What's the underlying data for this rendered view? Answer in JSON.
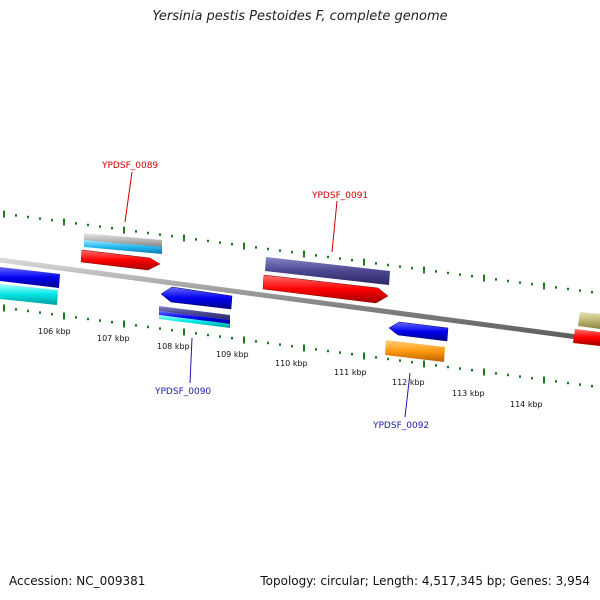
{
  "title": "Yersinia pestis Pestoides F, complete genome",
  "footer": {
    "accession": "Accession: NC_009381",
    "stats": "Topology: circular; Length: 4,517,345 bp; Genes: 3,954"
  },
  "ruler_labels": [
    "106 kbp",
    "107 kbp",
    "108 kbp",
    "109 kbp",
    "110 kbp",
    "111 kbp",
    "112 kbp",
    "113 kbp",
    "114 kbp"
  ],
  "gene_labels": [
    {
      "name": "YPDSF_0089",
      "color": "#cc0000"
    },
    {
      "name": "YPDSF_0090",
      "color": "#1a1aaa"
    },
    {
      "name": "YPDSF_0091",
      "color": "#cc0000"
    },
    {
      "name": "YPDSF_0092",
      "color": "#1a1aaa"
    }
  ],
  "colors": {
    "backbone": "#8c8c8c",
    "ticks": "#1f7a1f",
    "forward_cds": "#ff0000",
    "reverse_cds": "#0000ee"
  }
}
